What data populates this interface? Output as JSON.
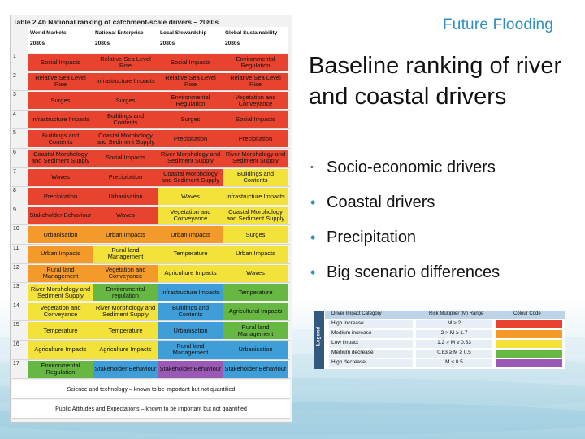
{
  "brand": "Future Flooding",
  "title": "Baseline ranking of river and coastal drivers",
  "bullets": [
    "Socio-economic drivers",
    "Coastal drivers",
    "Precipitation",
    "Big scenario differences"
  ],
  "table": {
    "caption": "Table 2.4b  National ranking of catchment-scale drivers – 2080s",
    "columns": [
      {
        "scenario": "World Markets",
        "year": "2080s"
      },
      {
        "scenario": "National Enterprise",
        "year": "2080s"
      },
      {
        "scenario": "Local Stewardship",
        "year": "2080s"
      },
      {
        "scenario": "Global Sustainability",
        "year": "2080s"
      }
    ],
    "rows": [
      {
        "rank": "1",
        "cells": [
          {
            "t": "Social Impacts",
            "c": "red"
          },
          {
            "t": "Relative Sea Level Rise",
            "c": "red"
          },
          {
            "t": "Social Impacts",
            "c": "red"
          },
          {
            "t": "Environmental Regulation",
            "c": "red"
          }
        ]
      },
      {
        "rank": "2",
        "cells": [
          {
            "t": "Relative Sea Level Rise",
            "c": "red"
          },
          {
            "t": "Infrastructure Impacts",
            "c": "red"
          },
          {
            "t": "Relative Sea Level Rise",
            "c": "red"
          },
          {
            "t": "Relative Sea Level Rise",
            "c": "red"
          }
        ]
      },
      {
        "rank": "3",
        "cells": [
          {
            "t": "Surges",
            "c": "red"
          },
          {
            "t": "Surges",
            "c": "red"
          },
          {
            "t": "Environmental Regulation",
            "c": "red"
          },
          {
            "t": "Vegetation and Conveyance",
            "c": "red"
          }
        ]
      },
      {
        "rank": "4",
        "cells": [
          {
            "t": "Infrastructure Impacts",
            "c": "red"
          },
          {
            "t": "Buildings and Contents",
            "c": "red"
          },
          {
            "t": "Surges",
            "c": "red"
          },
          {
            "t": "Social Impacts",
            "c": "red"
          }
        ]
      },
      {
        "rank": "5",
        "cells": [
          {
            "t": "Buildings and Contents",
            "c": "red"
          },
          {
            "t": "Coastal Morphology and Sediment Supply",
            "c": "red"
          },
          {
            "t": "Precipitation",
            "c": "red"
          },
          {
            "t": "Precipitation",
            "c": "red"
          }
        ]
      },
      {
        "rank": "6",
        "cells": [
          {
            "t": "Coastal Morphology and Sediment Supply",
            "c": "red"
          },
          {
            "t": "Social Impacts",
            "c": "red"
          },
          {
            "t": "River Morphology and Sediment Supply",
            "c": "red"
          },
          {
            "t": "River Morphology and Sediment Supply",
            "c": "red"
          }
        ]
      },
      {
        "rank": "7",
        "cells": [
          {
            "t": "Waves",
            "c": "red"
          },
          {
            "t": "Precipitation",
            "c": "red"
          },
          {
            "t": "Coastal Morphology and Sediment Supply",
            "c": "red"
          },
          {
            "t": "Buildings and Contents",
            "c": "yellow"
          }
        ]
      },
      {
        "rank": "8",
        "cells": [
          {
            "t": "Precipitation",
            "c": "red"
          },
          {
            "t": "Urbanisation",
            "c": "red"
          },
          {
            "t": "Waves",
            "c": "yellow"
          },
          {
            "t": "Infrastructure Impacts",
            "c": "yellow"
          }
        ]
      },
      {
        "rank": "9",
        "cells": [
          {
            "t": "Stakeholder Behaviour",
            "c": "red"
          },
          {
            "t": "Waves",
            "c": "red"
          },
          {
            "t": "Vegetation and Conveyance",
            "c": "yellow"
          },
          {
            "t": "Coastal Morphology and Sediment Supply",
            "c": "yellow"
          }
        ]
      },
      {
        "rank": "10",
        "cells": [
          {
            "t": "Urbanisation",
            "c": "orange"
          },
          {
            "t": "Urban Impacts",
            "c": "orange"
          },
          {
            "t": "Urban Impacts",
            "c": "orange"
          },
          {
            "t": "Surges",
            "c": "yellow"
          }
        ]
      },
      {
        "rank": "11",
        "cells": [
          {
            "t": "Urban Impacts",
            "c": "orange"
          },
          {
            "t": "Rural land Management",
            "c": "yellow"
          },
          {
            "t": "Temperature",
            "c": "yellow"
          },
          {
            "t": "Urban Impacts",
            "c": "yellow"
          }
        ]
      },
      {
        "rank": "12",
        "cells": [
          {
            "t": "Rural land Management",
            "c": "orange"
          },
          {
            "t": "Vegetation and Conveyance",
            "c": "orange"
          },
          {
            "t": "Agriculture Impacts",
            "c": "yellow"
          },
          {
            "t": "Waves",
            "c": "yellow"
          }
        ]
      },
      {
        "rank": "13",
        "cells": [
          {
            "t": "River Morphology and Sediment Supply",
            "c": "yellow"
          },
          {
            "t": "Environmental regulation",
            "c": "green"
          },
          {
            "t": "Infrastructure Impacts",
            "c": "blue"
          },
          {
            "t": "Temperature",
            "c": "green"
          }
        ]
      },
      {
        "rank": "14",
        "cells": [
          {
            "t": "Vegetation and Conveyance",
            "c": "yellow"
          },
          {
            "t": "River Morphology and Sediment Supply",
            "c": "yellow"
          },
          {
            "t": "Buildings and Contents",
            "c": "blue"
          },
          {
            "t": "Agricultural Impacts",
            "c": "green"
          }
        ]
      },
      {
        "rank": "15",
        "cells": [
          {
            "t": "Temperature",
            "c": "yellow"
          },
          {
            "t": "Temperature",
            "c": "yellow"
          },
          {
            "t": "Urbanisation",
            "c": "blue"
          },
          {
            "t": "Rural land Management",
            "c": "green"
          }
        ]
      },
      {
        "rank": "16",
        "cells": [
          {
            "t": "Agriculture Impacts",
            "c": "yellow"
          },
          {
            "t": "Agriculture Impacts",
            "c": "yellow"
          },
          {
            "t": "Rural land Management",
            "c": "blue"
          },
          {
            "t": "Urbanisation",
            "c": "blue"
          }
        ]
      },
      {
        "rank": "17",
        "cells": [
          {
            "t": "Environmental Regulation",
            "c": "green"
          },
          {
            "t": "Stakeholder Behaviour",
            "c": "blue"
          },
          {
            "t": "Stakeholder Behaviour",
            "c": "purple"
          },
          {
            "t": "Stakeholder Behaviour",
            "c": "blue"
          }
        ]
      }
    ],
    "footnotes": [
      "Science and technology – known to be important but not quantified",
      "Public Attitudes and Expectations – known to be important but not quantified"
    ]
  },
  "legend": {
    "label": "Legend",
    "headers": [
      "Driver Impact Category",
      "Risk Multiplier (M) Range",
      "Colour Code"
    ],
    "rows": [
      {
        "category": "High increase",
        "range": "M ≥ 2",
        "color": "#e8432e"
      },
      {
        "category": "Medium increase",
        "range": "2 > M ≥ 1.7",
        "color": "#f39a2a"
      },
      {
        "category": "Low impact",
        "range": "1.2 > M ≥ 0.83",
        "color": "#f2e23a"
      },
      {
        "category": "Medium decrease",
        "range": "0.83 ≥ M ≥ 0.5",
        "color": "#67b843"
      },
      {
        "category": "High decrease",
        "range": "M ≤ 0.5",
        "color": "#9b59b6"
      }
    ]
  },
  "colors": {
    "red": "#e8432e",
    "orange": "#f39a2a",
    "yellow": "#f2e23a",
    "green": "#67b843",
    "blue": "#3f9ed8",
    "purple": "#9b59b6",
    "accent": "#2f8fbf"
  }
}
